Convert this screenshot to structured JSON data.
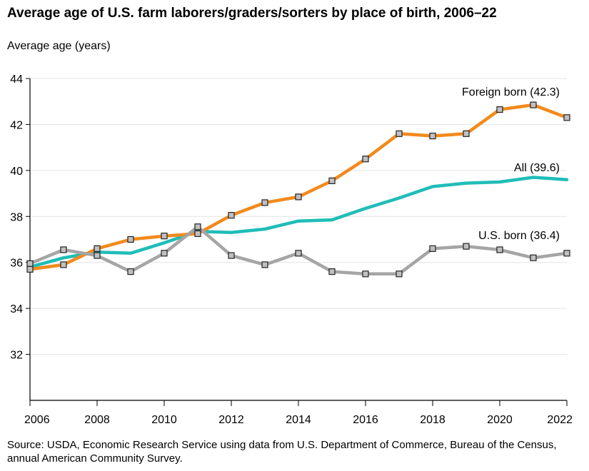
{
  "title": "Average age of U.S. farm laborers/graders/sorters by place of birth, 2006–22",
  "source": "Source: USDA, Economic Research Service using data from U.S. Department of Commerce, Bureau of the Census, annual American Community Survey.",
  "chart_data": {
    "type": "line",
    "title": "Average age of U.S. farm laborers/graders/sorters by place of birth, 2006–22",
    "ylabel": "Average age (years)",
    "xlabel": "",
    "x": [
      2006,
      2007,
      2008,
      2009,
      2010,
      2011,
      2012,
      2013,
      2014,
      2015,
      2016,
      2017,
      2018,
      2019,
      2020,
      2021,
      2022
    ],
    "xlim": [
      2006,
      2022
    ],
    "ylim": [
      30,
      44
    ],
    "xticks": [
      "2006",
      "2008",
      "2010",
      "2012",
      "2014",
      "2016",
      "2018",
      "2020",
      "2022"
    ],
    "yticks": [
      "32",
      "34",
      "36",
      "38",
      "40",
      "42",
      "44"
    ],
    "grid": "horizontal",
    "series": [
      {
        "name": "Foreign born (42.3)",
        "color": "#f28a1c",
        "markers": true,
        "values": [
          35.7,
          35.9,
          36.6,
          37.0,
          37.15,
          37.25,
          38.05,
          38.6,
          38.85,
          39.55,
          40.5,
          41.6,
          41.5,
          41.6,
          42.65,
          42.85,
          42.3
        ]
      },
      {
        "name": "All (39.6)",
        "color": "#1fbdb8",
        "markers": false,
        "values": [
          35.8,
          36.2,
          36.45,
          36.4,
          36.85,
          37.35,
          37.3,
          37.45,
          37.8,
          37.85,
          38.35,
          38.8,
          39.3,
          39.45,
          39.5,
          39.7,
          39.6
        ]
      },
      {
        "name": "U.S. born (36.4)",
        "color": "#a5a5a5",
        "markers": true,
        "values": [
          35.95,
          36.55,
          36.3,
          35.6,
          36.4,
          37.55,
          36.3,
          35.9,
          36.4,
          35.6,
          35.5,
          35.5,
          36.6,
          36.7,
          36.55,
          36.2,
          36.4
        ]
      }
    ]
  }
}
